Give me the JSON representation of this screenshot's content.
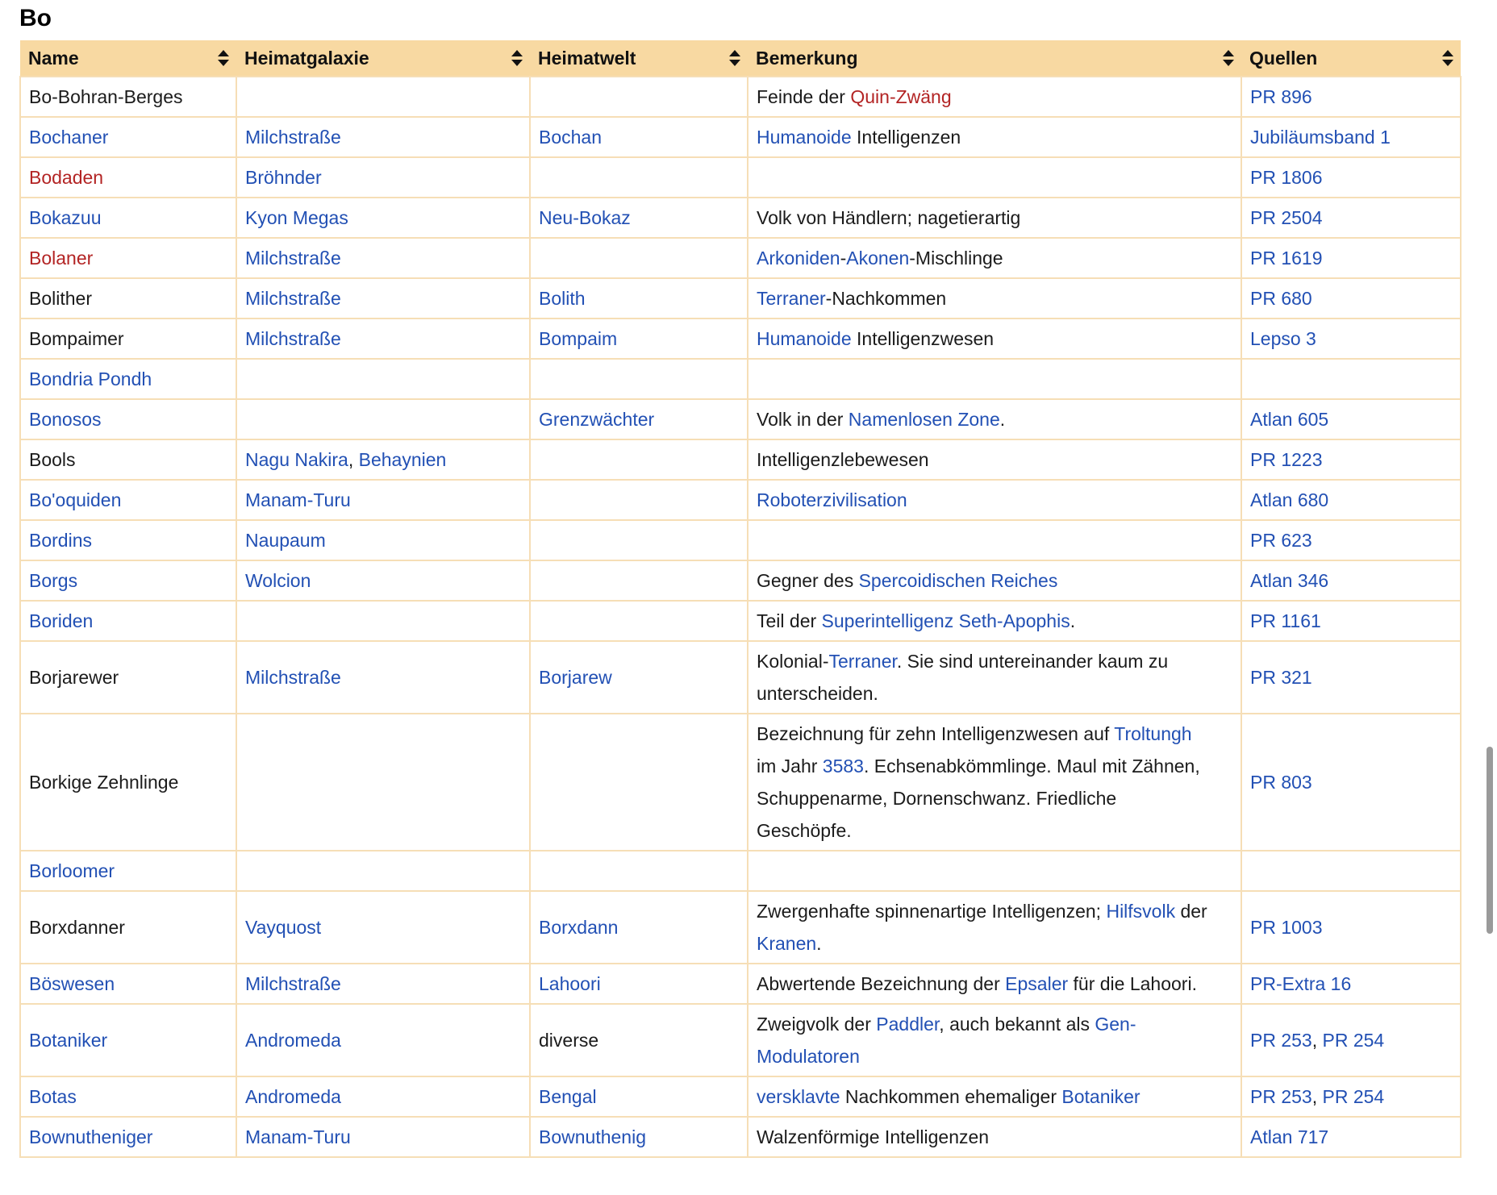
{
  "page": {
    "title": "Bo"
  },
  "colors": {
    "header_bg": "#f8d9a2",
    "border": "#f6deb6",
    "link": "#2250b4",
    "red_link": "#b32424",
    "text": "#1b1b1b",
    "scrollbar": "#9a9a9a"
  },
  "table": {
    "columns": [
      {
        "label": "Name"
      },
      {
        "label": "Heimatgalaxie"
      },
      {
        "label": "Heimatwelt"
      },
      {
        "label": "Bemerkung"
      },
      {
        "label": "Quellen"
      }
    ],
    "rows": [
      {
        "name": [
          {
            "text": "Bo-Bohran-Berges",
            "style": "plain"
          }
        ],
        "galaxy": [],
        "world": [],
        "remark": [
          {
            "text": "Feinde der ",
            "style": "plain"
          },
          {
            "text": "Quin-Zwäng",
            "style": "redlink"
          }
        ],
        "sources": [
          {
            "text": "PR 896",
            "style": "link"
          }
        ]
      },
      {
        "name": [
          {
            "text": "Bochaner",
            "style": "link"
          }
        ],
        "galaxy": [
          {
            "text": "Milchstraße",
            "style": "link"
          }
        ],
        "world": [
          {
            "text": "Bochan",
            "style": "link"
          }
        ],
        "remark": [
          {
            "text": "Humanoide",
            "style": "link"
          },
          {
            "text": " Intelligenzen",
            "style": "plain"
          }
        ],
        "sources": [
          {
            "text": "Jubiläumsband 1",
            "style": "link"
          }
        ]
      },
      {
        "name": [
          {
            "text": "Bodaden",
            "style": "redlink"
          }
        ],
        "galaxy": [
          {
            "text": "Bröhnder",
            "style": "link"
          }
        ],
        "world": [],
        "remark": [],
        "sources": [
          {
            "text": "PR 1806",
            "style": "link"
          }
        ]
      },
      {
        "name": [
          {
            "text": "Bokazuu",
            "style": "link"
          }
        ],
        "galaxy": [
          {
            "text": "Kyon Megas",
            "style": "link"
          }
        ],
        "world": [
          {
            "text": "Neu-Bokaz",
            "style": "link"
          }
        ],
        "remark": [
          {
            "text": "Volk von Händlern; nagetierartig",
            "style": "plain"
          }
        ],
        "sources": [
          {
            "text": "PR 2504",
            "style": "link"
          }
        ]
      },
      {
        "name": [
          {
            "text": "Bolaner",
            "style": "redlink"
          }
        ],
        "galaxy": [
          {
            "text": "Milchstraße",
            "style": "link"
          }
        ],
        "world": [],
        "remark": [
          {
            "text": "Arkoniden",
            "style": "link"
          },
          {
            "text": "-",
            "style": "plain"
          },
          {
            "text": "Akonen",
            "style": "link"
          },
          {
            "text": "-Mischlinge",
            "style": "plain"
          }
        ],
        "sources": [
          {
            "text": "PR 1619",
            "style": "link"
          }
        ]
      },
      {
        "name": [
          {
            "text": "Bolither",
            "style": "plain"
          }
        ],
        "galaxy": [
          {
            "text": "Milchstraße",
            "style": "link"
          }
        ],
        "world": [
          {
            "text": "Bolith",
            "style": "link"
          }
        ],
        "remark": [
          {
            "text": "Terraner",
            "style": "link"
          },
          {
            "text": "-Nachkommen",
            "style": "plain"
          }
        ],
        "sources": [
          {
            "text": "PR 680",
            "style": "link"
          }
        ]
      },
      {
        "name": [
          {
            "text": "Bompaimer",
            "style": "plain"
          }
        ],
        "galaxy": [
          {
            "text": "Milchstraße",
            "style": "link"
          }
        ],
        "world": [
          {
            "text": "Bompaim",
            "style": "link"
          }
        ],
        "remark": [
          {
            "text": "Humanoide",
            "style": "link"
          },
          {
            "text": " Intelligenzwesen",
            "style": "plain"
          }
        ],
        "sources": [
          {
            "text": "Lepso 3",
            "style": "link"
          }
        ]
      },
      {
        "name": [
          {
            "text": "Bondria Pondh",
            "style": "link"
          }
        ],
        "galaxy": [],
        "world": [],
        "remark": [],
        "sources": []
      },
      {
        "name": [
          {
            "text": "Bonosos",
            "style": "link"
          }
        ],
        "galaxy": [],
        "world": [
          {
            "text": "Grenzwächter",
            "style": "link"
          }
        ],
        "remark": [
          {
            "text": "Volk in der ",
            "style": "plain"
          },
          {
            "text": "Namenlosen Zone",
            "style": "link"
          },
          {
            "text": ".",
            "style": "plain"
          }
        ],
        "sources": [
          {
            "text": "Atlan 605",
            "style": "link"
          }
        ]
      },
      {
        "name": [
          {
            "text": "Bools",
            "style": "plain"
          }
        ],
        "galaxy": [
          {
            "text": "Nagu Nakira",
            "style": "link"
          },
          {
            "text": ", ",
            "style": "plain"
          },
          {
            "text": "Behaynien",
            "style": "link"
          }
        ],
        "world": [],
        "remark": [
          {
            "text": "Intelligenzlebewesen",
            "style": "plain"
          }
        ],
        "sources": [
          {
            "text": "PR 1223",
            "style": "link"
          }
        ]
      },
      {
        "name": [
          {
            "text": "Bo'oquiden",
            "style": "link"
          }
        ],
        "galaxy": [
          {
            "text": "Manam-Turu",
            "style": "link"
          }
        ],
        "world": [],
        "remark": [
          {
            "text": "Roboterzivilisation",
            "style": "link"
          }
        ],
        "sources": [
          {
            "text": "Atlan 680",
            "style": "link"
          }
        ]
      },
      {
        "name": [
          {
            "text": "Bordins",
            "style": "link"
          }
        ],
        "galaxy": [
          {
            "text": "Naupaum",
            "style": "link"
          }
        ],
        "world": [],
        "remark": [],
        "sources": [
          {
            "text": "PR 623",
            "style": "link"
          }
        ]
      },
      {
        "name": [
          {
            "text": "Borgs",
            "style": "link"
          }
        ],
        "galaxy": [
          {
            "text": "Wolcion",
            "style": "link"
          }
        ],
        "world": [],
        "remark": [
          {
            "text": "Gegner des ",
            "style": "plain"
          },
          {
            "text": "Spercoidischen Reiches",
            "style": "link"
          }
        ],
        "sources": [
          {
            "text": "Atlan 346",
            "style": "link"
          }
        ]
      },
      {
        "name": [
          {
            "text": "Boriden",
            "style": "link"
          }
        ],
        "galaxy": [],
        "world": [],
        "remark": [
          {
            "text": "Teil der ",
            "style": "plain"
          },
          {
            "text": "Superintelligenz Seth-Apophis",
            "style": "link"
          },
          {
            "text": ".",
            "style": "plain"
          }
        ],
        "sources": [
          {
            "text": "PR 1161",
            "style": "link"
          }
        ]
      },
      {
        "name": [
          {
            "text": "Borjarewer",
            "style": "plain"
          }
        ],
        "galaxy": [
          {
            "text": "Milchstraße",
            "style": "link"
          }
        ],
        "world": [
          {
            "text": "Borjarew",
            "style": "link"
          }
        ],
        "remark": [
          {
            "text": "Kolonial-",
            "style": "plain"
          },
          {
            "text": "Terraner",
            "style": "link"
          },
          {
            "text": ". Sie sind untereinander kaum zu unterscheiden.",
            "style": "plain"
          }
        ],
        "sources": [
          {
            "text": "PR 321",
            "style": "link"
          }
        ]
      },
      {
        "name": [
          {
            "text": "Borkige Zehnlinge",
            "style": "plain"
          }
        ],
        "galaxy": [],
        "world": [],
        "remark": [
          {
            "text": "Bezeichnung für zehn Intelligenzwesen auf ",
            "style": "plain"
          },
          {
            "text": "Troltungh",
            "style": "link"
          },
          {
            "text": " im Jahr ",
            "style": "plain"
          },
          {
            "text": "3583",
            "style": "link"
          },
          {
            "text": ". Echsenabkömmlinge. Maul mit Zähnen, Schuppenarme, Dornenschwanz. Friedliche Geschöpfe.",
            "style": "plain"
          }
        ],
        "sources": [
          {
            "text": "PR 803",
            "style": "link"
          }
        ]
      },
      {
        "name": [
          {
            "text": "Borloomer",
            "style": "link"
          }
        ],
        "galaxy": [],
        "world": [],
        "remark": [],
        "sources": []
      },
      {
        "name": [
          {
            "text": "Borxdanner",
            "style": "plain"
          }
        ],
        "galaxy": [
          {
            "text": "Vayquost",
            "style": "link"
          }
        ],
        "world": [
          {
            "text": "Borxdann",
            "style": "link"
          }
        ],
        "remark": [
          {
            "text": "Zwergenhafte spinnenartige Intelligenzen; ",
            "style": "plain"
          },
          {
            "text": "Hilfsvolk",
            "style": "link"
          },
          {
            "text": " der ",
            "style": "plain"
          },
          {
            "text": "Kranen",
            "style": "link"
          },
          {
            "text": ".",
            "style": "plain"
          }
        ],
        "sources": [
          {
            "text": "PR 1003",
            "style": "link"
          }
        ]
      },
      {
        "name": [
          {
            "text": "Böswesen",
            "style": "link"
          }
        ],
        "galaxy": [
          {
            "text": "Milchstraße",
            "style": "link"
          }
        ],
        "world": [
          {
            "text": "Lahoori",
            "style": "link"
          }
        ],
        "remark": [
          {
            "text": "Abwertende Bezeichnung der ",
            "style": "plain"
          },
          {
            "text": "Epsaler",
            "style": "link"
          },
          {
            "text": " für die Lahoori.",
            "style": "plain"
          }
        ],
        "sources": [
          {
            "text": "PR-Extra 16",
            "style": "link"
          }
        ]
      },
      {
        "name": [
          {
            "text": "Botaniker",
            "style": "link"
          }
        ],
        "galaxy": [
          {
            "text": "Andromeda",
            "style": "link"
          }
        ],
        "world": [
          {
            "text": "diverse",
            "style": "plain"
          }
        ],
        "remark": [
          {
            "text": "Zweigvolk der ",
            "style": "plain"
          },
          {
            "text": "Paddler",
            "style": "link"
          },
          {
            "text": ", auch bekannt als ",
            "style": "plain"
          },
          {
            "text": "Gen-Modulatoren",
            "style": "link"
          }
        ],
        "sources": [
          {
            "text": "PR 253",
            "style": "link"
          },
          {
            "text": ", ",
            "style": "plain"
          },
          {
            "text": "PR 254",
            "style": "link"
          }
        ]
      },
      {
        "name": [
          {
            "text": "Botas",
            "style": "link"
          }
        ],
        "galaxy": [
          {
            "text": "Andromeda",
            "style": "link"
          }
        ],
        "world": [
          {
            "text": "Bengal",
            "style": "link"
          }
        ],
        "remark": [
          {
            "text": "versklavte",
            "style": "link"
          },
          {
            "text": " Nachkommen ehemaliger ",
            "style": "plain"
          },
          {
            "text": "Botaniker",
            "style": "link"
          }
        ],
        "sources": [
          {
            "text": "PR 253",
            "style": "link"
          },
          {
            "text": ", ",
            "style": "plain"
          },
          {
            "text": "PR 254",
            "style": "link"
          }
        ]
      },
      {
        "name": [
          {
            "text": "Bownutheniger",
            "style": "link"
          }
        ],
        "galaxy": [
          {
            "text": "Manam-Turu",
            "style": "link"
          }
        ],
        "world": [
          {
            "text": "Bownuthenig",
            "style": "link"
          }
        ],
        "remark": [
          {
            "text": "Walzenförmige Intelligenzen",
            "style": "plain"
          }
        ],
        "sources": [
          {
            "text": "Atlan 717",
            "style": "link"
          }
        ]
      }
    ]
  }
}
